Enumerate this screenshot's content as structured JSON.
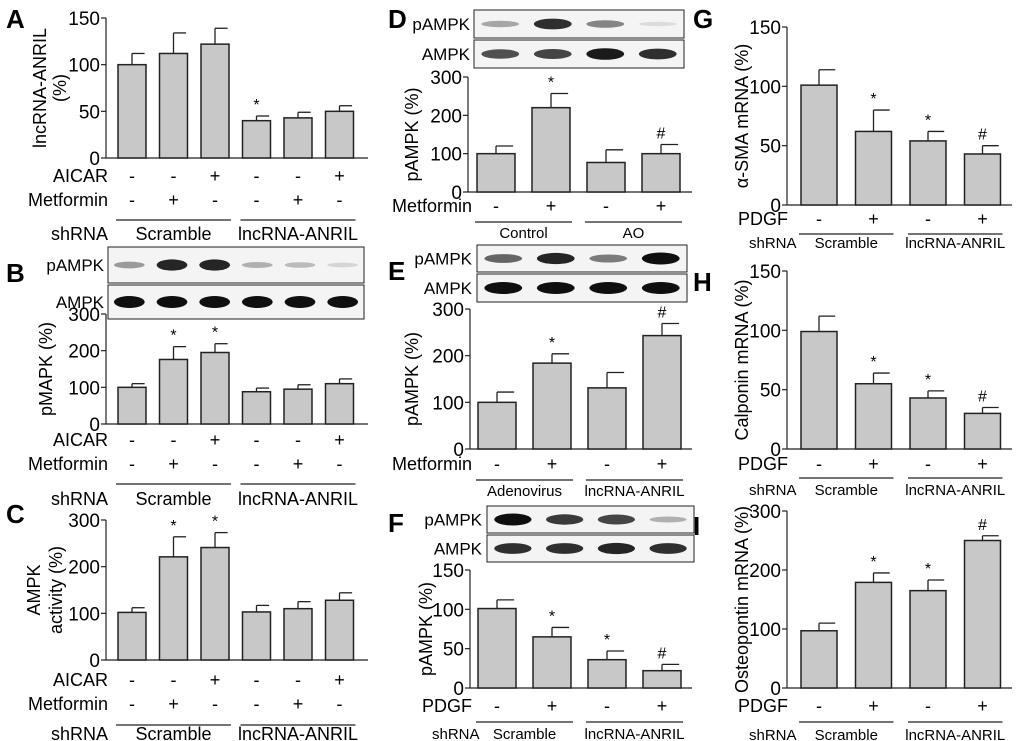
{
  "chart_data": [
    {
      "id": "A",
      "type": "bar",
      "panel_letter": "A",
      "ylabel": [
        "lncRNA-ANRIL",
        "(%)"
      ],
      "ylim": [
        0,
        150
      ],
      "yticks": [
        0,
        50,
        100,
        150
      ],
      "values": [
        100,
        112,
        122,
        40,
        43,
        50
      ],
      "errors": [
        12,
        22,
        17,
        5,
        6,
        6
      ],
      "sig": [
        "",
        "",
        "",
        "*",
        "",
        ""
      ],
      "treatment_rows": [
        {
          "label": "AICAR",
          "signs": [
            "-",
            "-",
            "+",
            "-",
            "-",
            "+"
          ]
        },
        {
          "label": "Metformin",
          "signs": [
            "-",
            "+",
            "-",
            "-",
            "+",
            "-"
          ]
        }
      ],
      "group_row_label": "shRNA",
      "groups": [
        {
          "label": "Scramble",
          "span": [
            0,
            2
          ]
        },
        {
          "label": "lncRNA-ANRIL",
          "span": [
            3,
            5
          ]
        }
      ]
    },
    {
      "id": "B",
      "type": "bar",
      "panel_letter": "B",
      "blots": [
        {
          "label": "pAMPK",
          "intensity": [
            0.35,
            0.9,
            0.9,
            0.25,
            0.2,
            0.08
          ]
        },
        {
          "label": "AMPK",
          "intensity": [
            1,
            1,
            1,
            1,
            1,
            1
          ]
        }
      ],
      "ylabel": [
        "pMAPK (%)"
      ],
      "ylim": [
        0,
        300
      ],
      "yticks": [
        0,
        100,
        200,
        300
      ],
      "values": [
        100,
        176,
        195,
        88,
        95,
        110
      ],
      "errors": [
        10,
        35,
        24,
        10,
        12,
        13
      ],
      "sig": [
        "",
        "*",
        "*",
        "",
        "",
        ""
      ],
      "treatment_rows": [
        {
          "label": "AICAR",
          "signs": [
            "-",
            "-",
            "+",
            "-",
            "-",
            "+"
          ]
        },
        {
          "label": "Metformin",
          "signs": [
            "-",
            "+",
            "-",
            "-",
            "+",
            "-"
          ]
        }
      ],
      "group_row_label": "shRNA",
      "groups": [
        {
          "label": "Scramble",
          "span": [
            0,
            2
          ]
        },
        {
          "label": "lncRNA-ANRIL",
          "span": [
            3,
            5
          ]
        }
      ]
    },
    {
      "id": "C",
      "type": "bar",
      "panel_letter": "C",
      "ylabel": [
        "AMPK",
        "activity (%)"
      ],
      "ylim": [
        0,
        300
      ],
      "yticks": [
        0,
        100,
        200,
        300
      ],
      "values": [
        102,
        221,
        241,
        103,
        110,
        128
      ],
      "errors": [
        10,
        43,
        32,
        14,
        15,
        16
      ],
      "sig": [
        "",
        "*",
        "*",
        "",
        "",
        ""
      ],
      "treatment_rows": [
        {
          "label": "AICAR",
          "signs": [
            "-",
            "-",
            "+",
            "-",
            "-",
            "+"
          ]
        },
        {
          "label": "Metformin",
          "signs": [
            "-",
            "+",
            "-",
            "-",
            "+",
            "-"
          ]
        }
      ],
      "group_row_label": "shRNA",
      "groups": [
        {
          "label": "Scramble",
          "span": [
            0,
            2
          ]
        },
        {
          "label": "lncRNA-ANRIL",
          "span": [
            3,
            5
          ]
        }
      ]
    },
    {
      "id": "D",
      "type": "bar",
      "panel_letter": "D",
      "blots": [
        {
          "label": "pAMPK",
          "intensity": [
            0.3,
            0.85,
            0.45,
            0.05
          ]
        },
        {
          "label": "AMPK",
          "intensity": [
            0.7,
            0.75,
            0.95,
            0.85
          ]
        }
      ],
      "ylabel": [
        "pAMPK (%)"
      ],
      "ylim": [
        0,
        300
      ],
      "yticks": [
        0,
        100,
        200,
        300
      ],
      "values": [
        100,
        220,
        77,
        100
      ],
      "errors": [
        20,
        37,
        33,
        24
      ],
      "sig": [
        "",
        "*",
        "",
        "#"
      ],
      "treatment_rows": [
        {
          "label": "Metformin",
          "signs": [
            "-",
            "+",
            "-",
            "+"
          ]
        }
      ],
      "group_row_label": "",
      "groups": [
        {
          "label": "Control",
          "span": [
            0,
            1
          ]
        },
        {
          "label": "AO",
          "span": [
            2,
            3
          ]
        }
      ]
    },
    {
      "id": "E",
      "type": "bar",
      "panel_letter": "E",
      "blots": [
        {
          "label": "pAMPK",
          "intensity": [
            0.6,
            0.9,
            0.5,
            1
          ]
        },
        {
          "label": "AMPK",
          "intensity": [
            1,
            1,
            1,
            1
          ]
        }
      ],
      "ylabel": [
        "pAMPK (%)"
      ],
      "ylim": [
        0,
        300
      ],
      "yticks": [
        0,
        100,
        200,
        300
      ],
      "values": [
        100,
        184,
        131,
        243
      ],
      "errors": [
        22,
        20,
        33,
        26
      ],
      "sig": [
        "",
        "*",
        "",
        "#"
      ],
      "treatment_rows": [
        {
          "label": "Metformin",
          "signs": [
            "-",
            "+",
            "-",
            "+"
          ]
        }
      ],
      "group_row_label": "",
      "groups": [
        {
          "label": "Adenovirus",
          "span": [
            0,
            1
          ]
        },
        {
          "label": "lncRNA-ANRIL",
          "span": [
            2,
            3
          ]
        }
      ]
    },
    {
      "id": "F",
      "type": "bar",
      "panel_letter": "F",
      "blots": [
        {
          "label": "pAMPK",
          "intensity": [
            1,
            0.8,
            0.75,
            0.25
          ]
        },
        {
          "label": "AMPK",
          "intensity": [
            0.85,
            0.85,
            0.9,
            0.85
          ]
        }
      ],
      "ylabel": [
        "pAMPK (%)"
      ],
      "ylim": [
        0,
        150
      ],
      "yticks": [
        0,
        50,
        100,
        150
      ],
      "values": [
        101,
        65,
        36,
        22
      ],
      "errors": [
        11,
        12,
        11,
        8
      ],
      "sig": [
        "",
        "*",
        "*",
        "#"
      ],
      "treatment_rows": [
        {
          "label": "PDGF",
          "signs": [
            "-",
            "+",
            "-",
            "+"
          ]
        }
      ],
      "group_row_label": "shRNA",
      "groups": [
        {
          "label": "Scramble",
          "span": [
            0,
            1
          ]
        },
        {
          "label": "lncRNA-ANRIL",
          "span": [
            2,
            3
          ]
        }
      ]
    },
    {
      "id": "G",
      "type": "bar",
      "panel_letter": "G",
      "ylabel": [
        "α-SMA mRNA (%)"
      ],
      "ylim": [
        0,
        150
      ],
      "yticks": [
        0,
        50,
        100,
        150
      ],
      "values": [
        101,
        62,
        54,
        43
      ],
      "errors": [
        13,
        18,
        8,
        7
      ],
      "sig": [
        "",
        "*",
        "*",
        "#"
      ],
      "treatment_rows": [
        {
          "label": "PDGF",
          "signs": [
            "-",
            "+",
            "-",
            "+"
          ]
        }
      ],
      "group_row_label": "shRNA",
      "groups": [
        {
          "label": "Scramble",
          "span": [
            0,
            1
          ]
        },
        {
          "label": "lncRNA-ANRIL",
          "span": [
            2,
            3
          ]
        }
      ]
    },
    {
      "id": "H",
      "type": "bar",
      "panel_letter": "H",
      "ylabel": [
        "Calponin mRNA (%)"
      ],
      "ylim": [
        0,
        150
      ],
      "yticks": [
        0,
        50,
        100,
        150
      ],
      "values": [
        99,
        55,
        43,
        30
      ],
      "errors": [
        13,
        9,
        6,
        5
      ],
      "sig": [
        "",
        "*",
        "*",
        "#"
      ],
      "treatment_rows": [
        {
          "label": "PDGF",
          "signs": [
            "-",
            "+",
            "-",
            "+"
          ]
        }
      ],
      "group_row_label": "shRNA",
      "groups": [
        {
          "label": "Scramble",
          "span": [
            0,
            1
          ]
        },
        {
          "label": "lncRNA-ANRIL",
          "span": [
            2,
            3
          ]
        }
      ]
    },
    {
      "id": "I",
      "type": "bar",
      "panel_letter": "I",
      "ylabel": [
        "Osteopontin mRNA (%)"
      ],
      "ylim": [
        0,
        300
      ],
      "yticks": [
        0,
        100,
        200,
        300
      ],
      "values": [
        97,
        179,
        165,
        250
      ],
      "errors": [
        13,
        16,
        18,
        8
      ],
      "sig": [
        "",
        "*",
        "*",
        "#"
      ],
      "treatment_rows": [
        {
          "label": "PDGF",
          "signs": [
            "-",
            "+",
            "-",
            "+"
          ]
        }
      ],
      "group_row_label": "shRNA",
      "groups": [
        {
          "label": "Scramble",
          "span": [
            0,
            1
          ]
        },
        {
          "label": "lncRNA-ANRIL",
          "span": [
            2,
            3
          ]
        }
      ]
    }
  ]
}
